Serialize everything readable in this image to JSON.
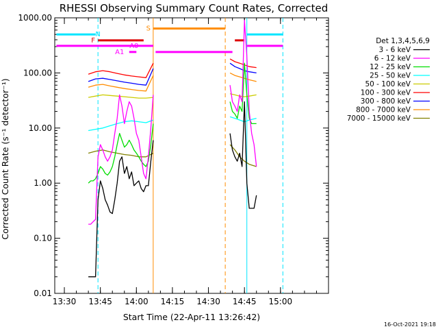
{
  "chart_data": {
    "type": "line",
    "title": "RHESSI Observing Summary Count Rates, Corrected",
    "xlabel": "Start Time (22-Apr-11 13:26:42)",
    "ylabel": "Corrected Count Rate (s⁻¹ detector⁻¹)",
    "yscale": "log",
    "ylim": [
      0.01,
      1000
    ],
    "xlim_minutes_after_1326": [
      0,
      114
    ],
    "x_ticks": [
      "13:30",
      "13:45",
      "14:00",
      "14:15",
      "14:30",
      "14:45",
      "15:00"
    ],
    "y_ticks": [
      "1000.00",
      "100.00",
      "10.00",
      "1.00",
      "0.10",
      "0.01"
    ],
    "grid": false,
    "legend_title": "Det 1,3,4,5,6,9",
    "legend_position": "right",
    "timestamp": "16-Oct-2021 19:18",
    "gap": {
      "start": "14:07",
      "end": "14:39"
    },
    "series": [
      {
        "name": "3 - 6 keV",
        "color": "#000000",
        "x": [
          "13:40",
          "13:41",
          "13:42",
          "13:43",
          "13:44",
          "13:45",
          "13:46",
          "13:47",
          "13:48",
          "13:49",
          "13:50",
          "13:51",
          "13:52",
          "13:53",
          "13:54",
          "13:55",
          "13:56",
          "13:57",
          "13:58",
          "13:59",
          "14:00",
          "14:01",
          "14:02",
          "14:03",
          "14:04",
          "14:05",
          "14:06",
          "14:07",
          "14:39",
          "14:40",
          "14:41",
          "14:42",
          "14:43",
          "14:44",
          "14:45",
          "14:46",
          "14:47",
          "14:48",
          "14:49",
          "14:50"
        ],
        "y": [
          0.02,
          0.02,
          0.02,
          0.02,
          0.5,
          1.1,
          0.8,
          0.5,
          0.4,
          0.3,
          0.28,
          0.5,
          1.0,
          2.5,
          3.0,
          1.5,
          2.0,
          1.2,
          1.6,
          0.9,
          1.0,
          1.1,
          0.8,
          0.7,
          0.9,
          0.9,
          2.5,
          6.0,
          8.0,
          4.0,
          3.0,
          2.5,
          3.5,
          2.0,
          30.0,
          1.0,
          0.35,
          0.35,
          0.35,
          0.6
        ]
      },
      {
        "name": "6 - 12 keV",
        "color": "#ff00ff",
        "x": [
          "13:40",
          "13:41",
          "13:42",
          "13:43",
          "13:44",
          "13:45",
          "13:46",
          "13:47",
          "13:48",
          "13:49",
          "13:50",
          "13:51",
          "13:52",
          "13:53",
          "13:54",
          "13:55",
          "13:56",
          "13:57",
          "13:58",
          "13:59",
          "14:00",
          "14:01",
          "14:02",
          "14:03",
          "14:04",
          "14:05",
          "14:06",
          "14:07",
          "14:39",
          "14:40",
          "14:41",
          "14:42",
          "14:43",
          "14:44",
          "14:45",
          "14:46",
          "14:47",
          "14:48",
          "14:49",
          "14:50"
        ],
        "y": [
          0.18,
          0.18,
          0.2,
          0.22,
          3.0,
          5.0,
          4.0,
          3.0,
          2.5,
          3.0,
          4.0,
          8.0,
          15.0,
          40.0,
          25.0,
          12.0,
          20.0,
          30.0,
          25.0,
          15.0,
          8.0,
          6.0,
          3.0,
          1.5,
          1.2,
          3.0,
          10.0,
          40.0,
          60.0,
          30.0,
          25.0,
          20.0,
          40.0,
          30.0,
          900.0,
          200.0,
          20.0,
          8.0,
          5.0,
          2.0
        ]
      },
      {
        "name": "12 - 25 keV",
        "color": "#00dd00",
        "x": [
          "13:40",
          "13:41",
          "13:42",
          "13:43",
          "13:44",
          "13:45",
          "13:46",
          "13:47",
          "13:48",
          "13:49",
          "13:50",
          "13:51",
          "13:52",
          "13:53",
          "13:54",
          "13:55",
          "13:56",
          "13:57",
          "13:58",
          "13:59",
          "14:00",
          "14:01",
          "14:02",
          "14:03",
          "14:04",
          "14:05",
          "14:06",
          "14:07",
          "14:39",
          "14:40",
          "14:41",
          "14:42",
          "14:43",
          "14:44",
          "14:45",
          "14:46",
          "14:47",
          "14:48",
          "14:49",
          "14:50"
        ],
        "y": [
          1.0,
          1.1,
          1.1,
          1.2,
          1.5,
          2.0,
          1.8,
          1.5,
          1.4,
          1.6,
          2.0,
          3.0,
          5.0,
          8.0,
          6.0,
          4.5,
          5.0,
          6.0,
          5.0,
          4.0,
          3.5,
          3.0,
          2.5,
          2.2,
          2.0,
          2.5,
          5.0,
          12.0,
          30.0,
          20.0,
          18.0,
          15.0,
          25.0,
          20.0,
          150.0,
          40.0,
          15.0,
          12.0,
          12.0,
          12.0
        ]
      },
      {
        "name": "25 - 50 keV",
        "color": "#00ffff",
        "x": [
          "13:40",
          "13:43",
          "13:46",
          "13:49",
          "13:52",
          "13:55",
          "13:58",
          "14:01",
          "14:04",
          "14:07",
          "14:39",
          "14:41",
          "14:43",
          "14:45",
          "14:47",
          "14:50"
        ],
        "y": [
          9.0,
          9.5,
          10.0,
          11.0,
          12.0,
          13.0,
          13.5,
          13.0,
          12.5,
          14.0,
          16.0,
          15.0,
          14.0,
          13.0,
          14.0,
          15.0
        ]
      },
      {
        "name": "50 - 100 keV",
        "color": "#cccc00",
        "x": [
          "13:40",
          "13:43",
          "13:46",
          "13:49",
          "13:52",
          "13:55",
          "13:58",
          "14:01",
          "14:04",
          "14:07",
          "14:39",
          "14:41",
          "14:43",
          "14:45",
          "14:47",
          "14:50"
        ],
        "y": [
          36.0,
          38.0,
          40.0,
          39.0,
          38.0,
          37.0,
          36.0,
          35.0,
          35.0,
          36.0,
          42.0,
          40.0,
          38.0,
          37.0,
          38.0,
          40.0
        ]
      },
      {
        "name": "100 - 300 keV",
        "color": "#ff0000",
        "x": [
          "13:40",
          "13:43",
          "13:46",
          "13:49",
          "13:52",
          "13:55",
          "13:58",
          "14:01",
          "14:04",
          "14:07",
          "14:39",
          "14:41",
          "14:43",
          "14:45",
          "14:47",
          "14:50"
        ],
        "y": [
          95.0,
          105.0,
          110.0,
          105.0,
          98.0,
          92.0,
          88.0,
          85.0,
          82.0,
          150.0,
          180.0,
          160.0,
          150.0,
          140.0,
          130.0,
          125.0
        ]
      },
      {
        "name": "300 - 800 keV",
        "color": "#0000ff",
        "x": [
          "13:40",
          "13:43",
          "13:46",
          "13:49",
          "13:52",
          "13:55",
          "13:58",
          "14:01",
          "14:04",
          "14:07",
          "14:39",
          "14:41",
          "14:43",
          "14:45",
          "14:47",
          "14:50"
        ],
        "y": [
          70.0,
          78.0,
          80.0,
          76.0,
          72.0,
          68.0,
          65.0,
          62.0,
          60.0,
          120.0,
          150.0,
          130.0,
          120.0,
          110.0,
          105.0,
          100.0
        ]
      },
      {
        "name": "800 - 7000 keV",
        "color": "#ff8c00",
        "x": [
          "13:40",
          "13:43",
          "13:46",
          "13:49",
          "13:52",
          "13:55",
          "13:58",
          "14:01",
          "14:04",
          "14:07",
          "14:39",
          "14:41",
          "14:43",
          "14:45",
          "14:47",
          "14:50"
        ],
        "y": [
          55.0,
          60.0,
          62.0,
          58.0,
          55.0,
          52.0,
          50.0,
          48.0,
          47.0,
          90.0,
          100.0,
          90.0,
          85.0,
          80.0,
          75.0,
          70.0
        ]
      },
      {
        "name": "7000 - 15000 keV",
        "color": "#808000",
        "x": [
          "13:40",
          "13:43",
          "13:46",
          "13:49",
          "13:52",
          "13:55",
          "13:58",
          "14:01",
          "14:04",
          "14:07",
          "14:39",
          "14:41",
          "14:43",
          "14:45",
          "14:47",
          "14:50"
        ],
        "y": [
          3.5,
          3.8,
          4.0,
          3.7,
          3.5,
          3.3,
          3.2,
          3.0,
          3.0,
          3.5,
          5.0,
          4.0,
          3.0,
          2.5,
          2.2,
          2.0
        ]
      }
    ],
    "flags": [
      {
        "label": "N",
        "color": "#00e5ff",
        "log_y": 500,
        "x_start": "13:26:42",
        "x_end": "13:43",
        "label_at": "13:44"
      },
      {
        "label": "",
        "color": "#00e5ff",
        "log_y": 500,
        "x_start": "14:46",
        "x_end": "15:01"
      },
      {
        "label": "S",
        "color": "#ff8c00",
        "log_y": 640,
        "x_start": "14:07",
        "x_end": "14:37",
        "label_at": "14:05"
      },
      {
        "label": "F",
        "color": "#dd0000",
        "log_y": 390,
        "x_start": "13:44",
        "x_end": "14:03",
        "label_at": "13:42"
      },
      {
        "label": "",
        "color": "#dd0000",
        "log_y": 390,
        "x_start": "14:41",
        "x_end": "14:45"
      },
      {
        "label": "A0",
        "color": "#ff00ff",
        "log_y": 310,
        "x_start": "13:26:42",
        "x_end": "14:07",
        "label_at": "13:59"
      },
      {
        "label": "",
        "color": "#ff00ff",
        "log_y": 310,
        "x_start": "14:46",
        "x_end": "15:01"
      },
      {
        "label": "A1",
        "color": "#ff00ff",
        "log_y": 240,
        "x_start": "13:57",
        "x_end": "14:00",
        "label_at": "13:53"
      },
      {
        "label": "",
        "color": "#ff00ff",
        "log_y": 240,
        "x_start": "14:08",
        "x_end": "14:40"
      }
    ],
    "vlines": [
      {
        "t": "13:44",
        "color": "#00e5ff",
        "dashed": true
      },
      {
        "t": "14:07",
        "color": "#ff8c00",
        "dashed": false
      },
      {
        "t": "14:37",
        "color": "#ff8c00",
        "dashed": true
      },
      {
        "t": "14:46",
        "color": "#00e5ff",
        "dashed": false
      },
      {
        "t": "15:01",
        "color": "#00e5ff",
        "dashed": true
      }
    ]
  }
}
